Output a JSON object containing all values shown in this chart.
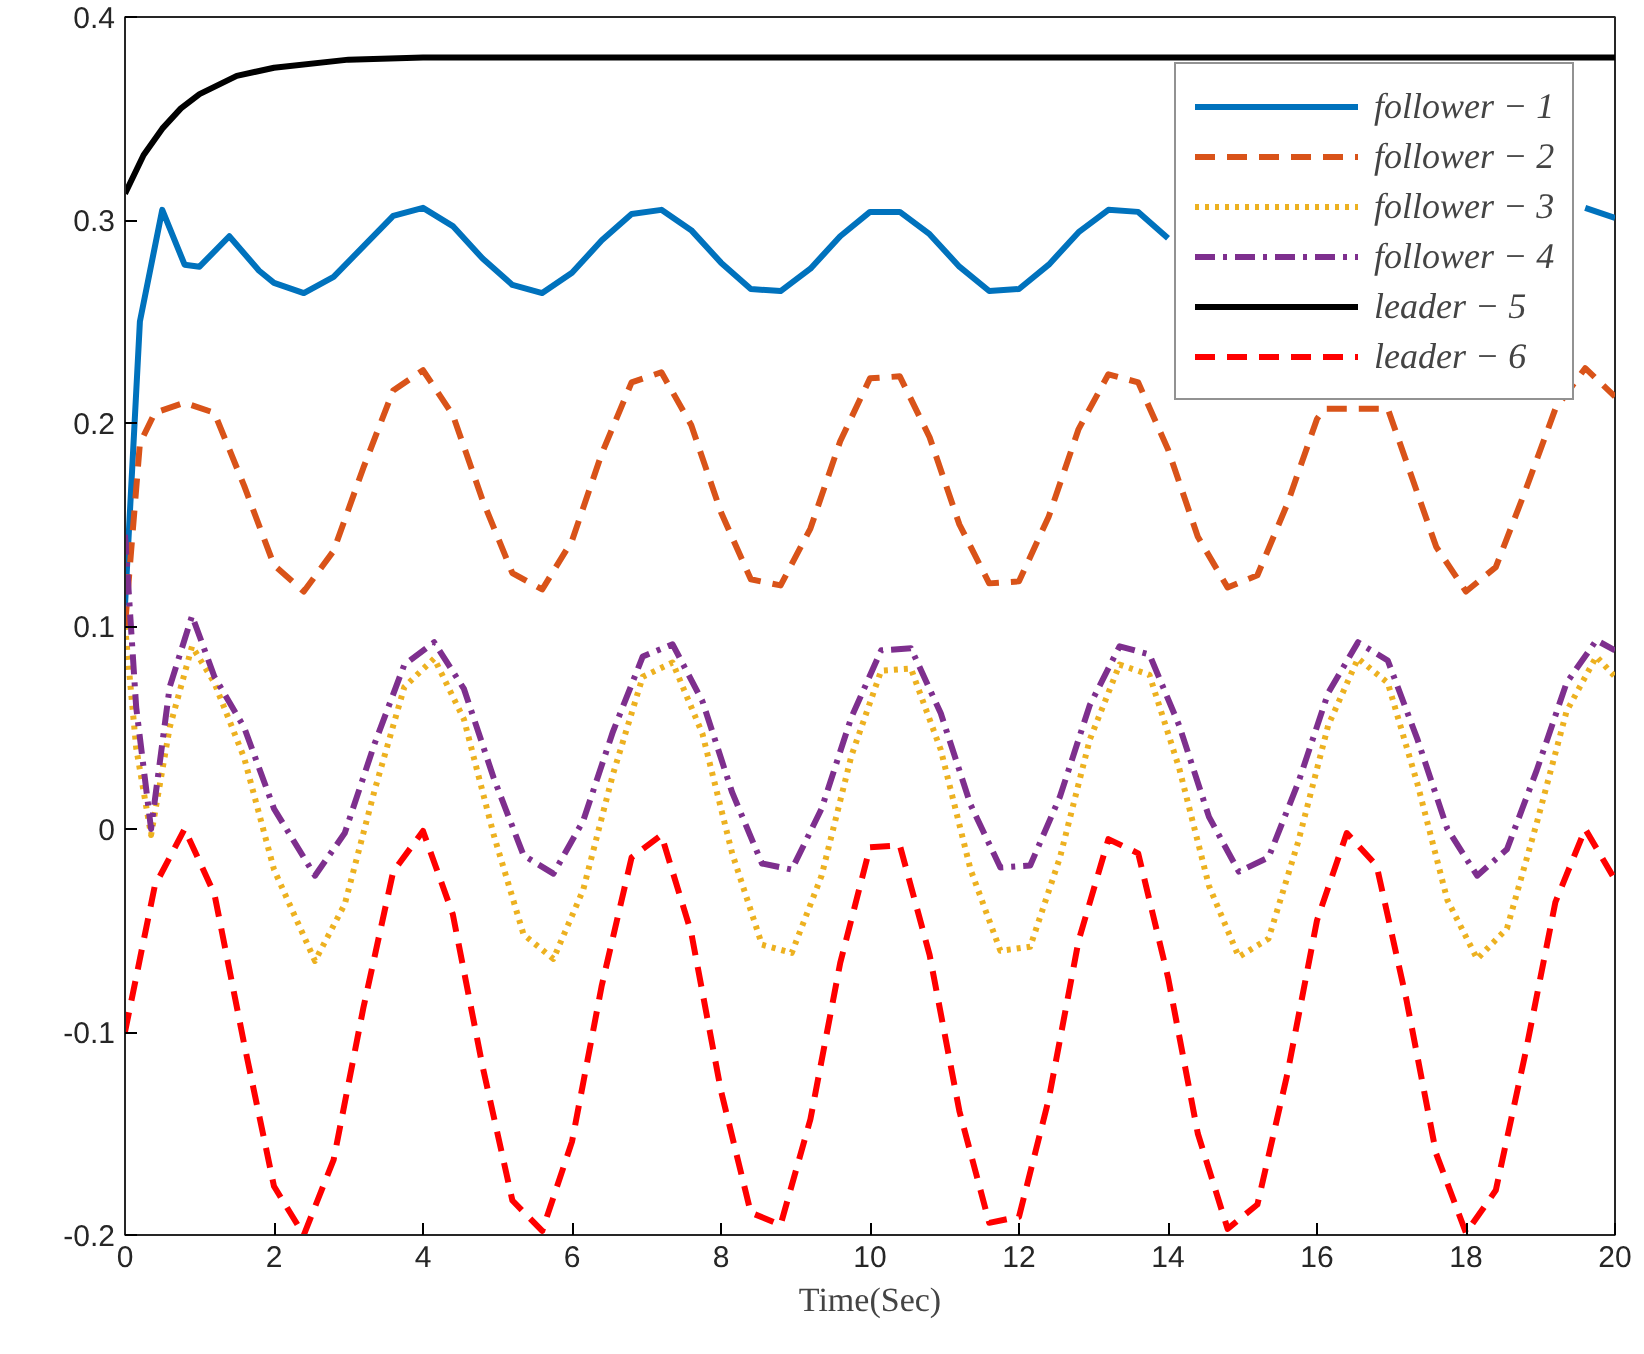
{
  "chart_data": {
    "type": "line",
    "xlabel": "Time(Sec)",
    "xlim": [
      0,
      20
    ],
    "ylim": [
      -0.2,
      0.4
    ],
    "xticks": [
      0,
      2,
      4,
      6,
      8,
      10,
      12,
      14,
      16,
      18,
      20
    ],
    "yticks": [
      {
        "value": -0.2,
        "label": "-0.2"
      },
      {
        "value": -0.1,
        "label": "-0.1"
      },
      0,
      0.1,
      0.2,
      0.3,
      0.4
    ],
    "grid": false,
    "legend": "top right",
    "series": [
      {
        "name": "follower − 1",
        "color": "#0072bd",
        "line_style": "solid",
        "x": [
          0,
          0.2,
          0.5,
          0.8,
          1.0,
          1.4,
          1.8,
          2.0,
          2.4,
          2.8,
          3.2,
          3.6,
          4.0,
          4.4,
          4.8,
          5.2,
          5.6,
          6.0,
          6.4,
          6.8,
          7.2,
          7.6,
          8.0,
          8.4,
          8.8,
          9.2,
          9.6,
          10.0,
          10.4,
          10.8,
          11.2,
          11.6,
          12.0,
          12.4,
          12.8,
          13.2,
          13.6,
          14.0,
          14.4,
          14.8,
          15.2,
          15.6,
          16.0,
          16.4,
          16.8,
          17.2,
          17.6,
          18.0,
          18.4,
          18.8,
          19.2,
          19.6,
          20.0
        ],
        "values": [
          0.11,
          0.25,
          0.305,
          0.278,
          0.277,
          0.292,
          0.275,
          0.269,
          0.264,
          0.272,
          0.287,
          0.302,
          0.306,
          0.297,
          0.281,
          0.268,
          0.264,
          0.274,
          0.29,
          0.303,
          0.305,
          0.295,
          0.279,
          0.266,
          0.265,
          0.276,
          0.292,
          0.304,
          0.304,
          0.293,
          0.277,
          0.265,
          0.266,
          0.278,
          0.294,
          0.305,
          0.304,
          0.291,
          null,
          null,
          null,
          null,
          null,
          null,
          null,
          null,
          null,
          null,
          null,
          null,
          null,
          0.306,
          0.301
        ]
      },
      {
        "name": "follower − 2",
        "color": "#d95319",
        "line_style": "dashed",
        "x": [
          0,
          0.2,
          0.4,
          0.8,
          1.2,
          1.6,
          2.0,
          2.4,
          2.8,
          3.2,
          3.6,
          4.0,
          4.4,
          4.8,
          5.2,
          5.6,
          6.0,
          6.4,
          6.8,
          7.2,
          7.6,
          8.0,
          8.4,
          8.8,
          9.2,
          9.6,
          10.0,
          10.4,
          10.8,
          11.2,
          11.6,
          12.0,
          12.4,
          12.8,
          13.2,
          13.6,
          14.0,
          14.4,
          14.8,
          15.2,
          15.6,
          16.0,
          16.1,
          16.95,
          17.2,
          17.6,
          18.0,
          18.4,
          18.8,
          19.2,
          19.6,
          20.0
        ],
        "values": [
          0.1,
          0.19,
          0.205,
          0.21,
          0.205,
          0.169,
          0.13,
          0.117,
          0.137,
          0.178,
          0.216,
          0.226,
          0.204,
          0.162,
          0.126,
          0.118,
          0.142,
          0.185,
          0.22,
          0.225,
          0.199,
          0.156,
          0.123,
          0.12,
          0.148,
          0.191,
          0.222,
          0.223,
          0.193,
          0.15,
          0.121,
          0.122,
          0.154,
          0.197,
          0.224,
          0.22,
          0.187,
          0.144,
          0.119,
          0.125,
          0.16,
          0.202,
          0.207,
          0.207,
          0.181,
          0.139,
          0.117,
          0.129,
          0.167,
          0.207,
          0.227,
          0.213
        ]
      },
      {
        "name": "follower − 3",
        "color": "#edb120",
        "line_style": "dotted",
        "x": [
          0,
          0.15,
          0.35,
          0.6,
          0.9,
          1.2,
          1.6,
          2.0,
          2.55,
          2.95,
          3.35,
          3.75,
          4.15,
          4.55,
          4.95,
          5.35,
          5.75,
          6.15,
          6.55,
          6.95,
          7.35,
          7.75,
          8.15,
          8.55,
          8.95,
          9.35,
          9.75,
          10.15,
          10.55,
          10.95,
          11.35,
          11.75,
          12.15,
          12.55,
          12.95,
          13.35,
          13.75,
          14.15,
          14.55,
          14.95,
          15.35,
          15.75,
          16.15,
          16.55,
          16.95,
          17.35,
          17.75,
          18.15,
          18.55,
          18.95,
          19.35,
          19.75,
          20.0
        ],
        "values": [
          0.1,
          0.04,
          -0.003,
          0.05,
          0.09,
          0.072,
          0.035,
          -0.02,
          -0.065,
          -0.037,
          0.019,
          0.07,
          0.084,
          0.054,
          -0.003,
          -0.052,
          -0.064,
          -0.03,
          0.027,
          0.075,
          0.082,
          0.047,
          -0.012,
          -0.057,
          -0.061,
          -0.023,
          0.036,
          0.078,
          0.079,
          0.039,
          -0.02,
          -0.06,
          -0.058,
          -0.014,
          0.044,
          0.081,
          0.076,
          0.03,
          -0.028,
          -0.063,
          -0.054,
          -0.006,
          0.051,
          0.084,
          0.072,
          0.022,
          -0.035,
          -0.064,
          -0.049,
          0.003,
          0.058,
          0.085,
          0.075
        ]
      },
      {
        "name": "follower − 4",
        "color": "#7e2f8e",
        "line_style": "dashdot",
        "x": [
          0,
          0.15,
          0.35,
          0.6,
          0.9,
          1.2,
          1.6,
          2.0,
          2.55,
          2.95,
          3.35,
          3.75,
          4.15,
          4.55,
          4.95,
          5.35,
          5.75,
          6.15,
          6.55,
          6.95,
          7.35,
          7.75,
          8.15,
          8.55,
          8.95,
          9.35,
          9.75,
          10.15,
          10.55,
          10.95,
          11.35,
          11.75,
          12.15,
          12.55,
          12.95,
          13.35,
          13.75,
          14.15,
          14.55,
          14.95,
          15.35,
          15.75,
          16.15,
          16.55,
          16.95,
          17.35,
          17.75,
          18.15,
          18.55,
          18.95,
          19.35,
          19.75,
          20.0
        ],
        "values": [
          0.145,
          0.06,
          0.0,
          0.07,
          0.105,
          0.075,
          0.05,
          0.01,
          -0.023,
          -0.002,
          0.042,
          0.081,
          0.092,
          0.069,
          0.025,
          -0.013,
          -0.022,
          0.004,
          0.048,
          0.085,
          0.091,
          0.063,
          0.018,
          -0.017,
          -0.02,
          0.01,
          0.055,
          0.088,
          0.089,
          0.057,
          0.012,
          -0.019,
          -0.018,
          0.016,
          0.061,
          0.09,
          0.086,
          0.051,
          0.006,
          -0.021,
          -0.014,
          0.023,
          0.067,
          0.092,
          0.083,
          0.044,
          0.0,
          -0.023,
          -0.01,
          0.029,
          0.072,
          0.093,
          0.088
        ]
      },
      {
        "name": "leader − 5",
        "color": "#000000",
        "line_style": "solid",
        "x": [
          0,
          0.25,
          0.5,
          0.75,
          1,
          1.5,
          2,
          3,
          4,
          20
        ],
        "values": [
          0.313,
          0.332,
          0.345,
          0.355,
          0.362,
          0.371,
          0.375,
          0.379,
          0.38,
          0.38
        ]
      },
      {
        "name": "leader − 6",
        "color": "#ff0000",
        "line_style": "dashed",
        "x": [
          0,
          0.4,
          0.8,
          1.2,
          1.6,
          2.0,
          2.4,
          2.8,
          3.2,
          3.6,
          4.0,
          4.4,
          4.8,
          5.2,
          5.6,
          6.0,
          6.4,
          6.8,
          7.2,
          7.6,
          8.0,
          8.4,
          8.8,
          9.2,
          9.6,
          10.0,
          10.4,
          10.8,
          11.2,
          11.6,
          12.0,
          12.4,
          12.8,
          13.2,
          13.6,
          14.0,
          14.4,
          14.8,
          15.2,
          15.6,
          16.0,
          16.4,
          16.8,
          17.2,
          17.6,
          18.0,
          18.4,
          18.8,
          19.2,
          19.6,
          20.0
        ],
        "values": [
          -0.1,
          -0.028,
          0.0,
          -0.032,
          -0.106,
          -0.176,
          -0.2,
          -0.163,
          -0.088,
          -0.021,
          -0.001,
          -0.042,
          -0.117,
          -0.183,
          -0.198,
          -0.154,
          -0.077,
          -0.014,
          -0.003,
          -0.051,
          -0.129,
          -0.189,
          -0.195,
          -0.143,
          -0.066,
          -0.009,
          -0.008,
          -0.062,
          -0.139,
          -0.194,
          -0.191,
          -0.133,
          -0.055,
          -0.005,
          -0.012,
          -0.073,
          -0.15,
          -0.197,
          -0.185,
          -0.121,
          -0.045,
          -0.002,
          -0.018,
          -0.084,
          -0.16,
          -0.199,
          -0.178,
          -0.11,
          -0.036,
          0.0,
          -0.025
        ]
      }
    ]
  }
}
